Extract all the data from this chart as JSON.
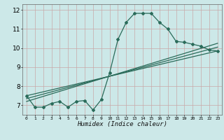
{
  "xlabel": "Humidex (Indice chaleur)",
  "bg_color": "#cce8e8",
  "grid_color": "#aacccc",
  "line_color": "#2a6b5a",
  "xlim": [
    -0.5,
    23.5
  ],
  "ylim": [
    6.5,
    12.3
  ],
  "xticks": [
    0,
    1,
    2,
    3,
    4,
    5,
    6,
    7,
    8,
    9,
    10,
    11,
    12,
    13,
    14,
    15,
    16,
    17,
    18,
    19,
    20,
    21,
    22,
    23
  ],
  "yticks": [
    7,
    8,
    9,
    10,
    11,
    12
  ],
  "curve1_x": [
    0,
    1,
    2,
    3,
    4,
    5,
    6,
    7,
    8,
    9,
    10,
    11,
    12,
    13,
    14,
    15,
    16,
    17,
    18,
    19,
    20,
    21,
    22,
    23
  ],
  "curve1_y": [
    7.5,
    6.9,
    6.9,
    7.1,
    7.2,
    6.9,
    7.2,
    7.25,
    6.75,
    7.3,
    8.7,
    10.45,
    11.35,
    11.82,
    11.82,
    11.82,
    11.35,
    11.0,
    10.35,
    10.3,
    10.2,
    10.1,
    9.9,
    9.85
  ],
  "line2_x": [
    0,
    23
  ],
  "line2_y": [
    7.5,
    9.85
  ],
  "line3_x": [
    0,
    23
  ],
  "line3_y": [
    7.35,
    10.05
  ],
  "line4_x": [
    0,
    23
  ],
  "line4_y": [
    7.2,
    10.25
  ]
}
